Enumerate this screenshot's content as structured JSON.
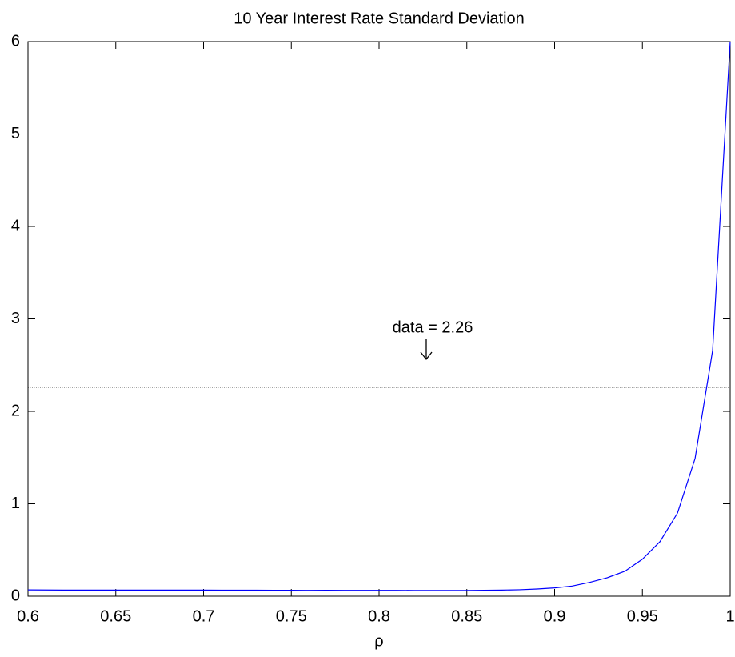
{
  "chart_data": {
    "type": "line",
    "title": "10 Year Interest Rate Standard Deviation",
    "x_label": "ρ",
    "x": [
      0.6,
      0.61,
      0.62,
      0.63,
      0.64,
      0.65,
      0.66,
      0.67,
      0.68,
      0.69,
      0.7,
      0.71,
      0.72,
      0.73,
      0.74,
      0.75,
      0.76,
      0.77,
      0.78,
      0.79,
      0.8,
      0.81,
      0.82,
      0.83,
      0.84,
      0.85,
      0.86,
      0.87,
      0.88,
      0.89,
      0.9,
      0.91,
      0.92,
      0.93,
      0.94,
      0.95,
      0.96,
      0.97,
      0.98,
      0.99,
      1.0
    ],
    "series": [
      {
        "name": "std",
        "color": "#0000ff",
        "values": [
          0.068,
          0.067,
          0.066,
          0.066,
          0.066,
          0.066,
          0.066,
          0.066,
          0.066,
          0.066,
          0.066,
          0.065,
          0.065,
          0.065,
          0.064,
          0.064,
          0.063,
          0.064,
          0.063,
          0.063,
          0.063,
          0.063,
          0.062,
          0.062,
          0.062,
          0.062,
          0.064,
          0.066,
          0.07,
          0.078,
          0.09,
          0.11,
          0.15,
          0.2,
          0.27,
          0.4,
          0.59,
          0.9,
          1.49,
          2.66,
          6.0
        ]
      }
    ],
    "reference_line": 2.26,
    "annotation": "data = 2.26",
    "xlim": [
      0.6,
      1
    ],
    "ylim": [
      0,
      6
    ],
    "xticks": [
      0.6,
      0.65,
      0.7,
      0.75,
      0.8,
      0.85,
      0.9,
      0.95,
      1
    ],
    "yticks": [
      0,
      1,
      2,
      3,
      4,
      5,
      6
    ]
  }
}
